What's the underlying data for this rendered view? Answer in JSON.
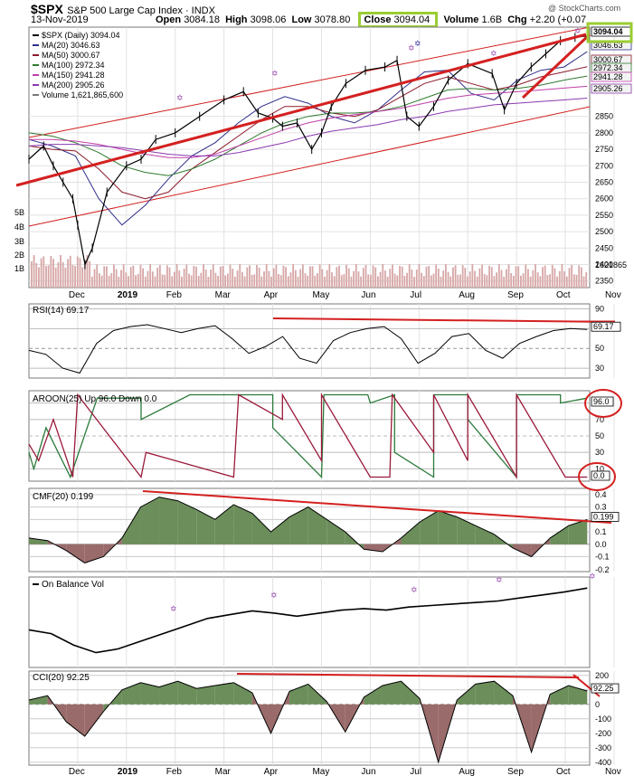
{
  "header": {
    "symbol": "$SPX",
    "name": "S&P 500 Large Cap Index",
    "exchange": "INDX",
    "date": "13-Nov-2019",
    "open_label": "Open",
    "open": "3084.18",
    "high_label": "High",
    "high": "3098.06",
    "low_label": "Low",
    "low": "3078.80",
    "close_label": "Close",
    "close": "3094.04",
    "volume_label": "Volume",
    "volume": "1.6B",
    "chg_label": "Chg",
    "chg": "+2.20 (+0.07",
    "watermark": "@ StockCharts.com"
  },
  "colors": {
    "price": "#000000",
    "ma20": "#2e2e8a",
    "ma50": "#8b1a2a",
    "ma100": "#2f7a2f",
    "ma150": "#c040a8",
    "ma200": "#8a3ab0",
    "trend": "#d42020",
    "highlight": "#9acd32",
    "volume": "#d7a7a7",
    "green_fill": "#6b8e5a",
    "red_fill": "#9a6b6b",
    "aroon_up": "#2a7a3a",
    "aroon_down": "#9a1a3a",
    "star": "#9a50b0"
  },
  "chart_data": [
    {
      "type": "line",
      "panel": "price",
      "legend": [
        "$SPX (Daily) 3094.04",
        "MA(20) 3046.63",
        "MA(50) 3000.67",
        "MA(100) 2972.34",
        "MA(150) 2941.28",
        "MA(200) 2905.26",
        "Volume 1,621,865,600"
      ],
      "x_tick_labels": [
        "Dec",
        "2019",
        "Feb",
        "Mar",
        "Apr",
        "May",
        "Jun",
        "Jul",
        "Aug",
        "Sep",
        "Oct",
        "Nov"
      ],
      "x_tick_months": [
        1,
        2,
        3,
        4,
        5,
        6,
        7,
        8,
        9,
        10,
        11,
        12
      ],
      "y_ticks": [
        2350,
        2400,
        2450,
        2500,
        2550,
        2600,
        2650,
        2700,
        2750,
        2800,
        2850
      ],
      "ylim": [
        2330,
        3110
      ],
      "volume_ticks": [
        "1B",
        "2B",
        "3B",
        "4B",
        "5B"
      ],
      "volume_last_label": "1621865",
      "right_labels": [
        "3094.04",
        "3046.63",
        "3000.67",
        "2972.34",
        "2941.28",
        "2905.26"
      ],
      "price": {
        "x": [
          0.0,
          0.3,
          0.5,
          0.7,
          0.9,
          1.0,
          1.15,
          1.3,
          1.6,
          2.0,
          2.3,
          2.6,
          3.0,
          3.5,
          4.0,
          4.4,
          4.7,
          5.0,
          5.2,
          5.5,
          5.8,
          6.0,
          6.2,
          6.5,
          6.9,
          7.3,
          7.55,
          7.75,
          8.0,
          8.3,
          8.6,
          9.0,
          9.5,
          9.75,
          10.0,
          10.3,
          10.6,
          10.9,
          11.2,
          11.45
        ],
        "values": [
          2720,
          2760,
          2700,
          2650,
          2600,
          2520,
          2400,
          2450,
          2620,
          2700,
          2720,
          2780,
          2800,
          2850,
          2900,
          2925,
          2860,
          2845,
          2820,
          2830,
          2750,
          2800,
          2880,
          2950,
          2990,
          3000,
          3020,
          2850,
          2820,
          2880,
          2960,
          3010,
          2980,
          2870,
          2950,
          3000,
          3040,
          3080,
          3090,
          3094.04
        ]
      },
      "moving_averages": [
        {
          "name": "MA(20)",
          "values": [
            2780,
            2760,
            2730,
            2600,
            2520,
            2580,
            2660,
            2730,
            2770,
            2830,
            2880,
            2910,
            2890,
            2850,
            2830,
            2870,
            2930,
            2985,
            2990,
            2920,
            2900,
            2960,
            2990,
            3000,
            3046.63
          ]
        },
        {
          "name": "MA(50)",
          "values": [
            2760,
            2750,
            2745,
            2690,
            2620,
            2600,
            2620,
            2690,
            2740,
            2790,
            2840,
            2880,
            2880,
            2860,
            2850,
            2870,
            2910,
            2950,
            2970,
            2950,
            2930,
            2945,
            2970,
            2985,
            3000.67
          ]
        },
        {
          "name": "MA(100)",
          "values": [
            2800,
            2790,
            2770,
            2740,
            2700,
            2680,
            2670,
            2690,
            2720,
            2760,
            2800,
            2830,
            2850,
            2860,
            2860,
            2865,
            2880,
            2905,
            2930,
            2935,
            2930,
            2935,
            2945,
            2960,
            2972.34
          ]
        },
        {
          "name": "MA(150)",
          "values": [
            2780,
            2780,
            2775,
            2765,
            2750,
            2735,
            2725,
            2725,
            2735,
            2760,
            2785,
            2810,
            2830,
            2845,
            2855,
            2865,
            2875,
            2890,
            2905,
            2915,
            2920,
            2925,
            2930,
            2936,
            2941.28
          ]
        },
        {
          "name": "MA(200)",
          "values": [
            2760,
            2765,
            2765,
            2760,
            2755,
            2745,
            2735,
            2730,
            2730,
            2740,
            2755,
            2770,
            2790,
            2805,
            2815,
            2825,
            2840,
            2850,
            2865,
            2875,
            2885,
            2890,
            2895,
            2900,
            2905.26
          ]
        }
      ]
    },
    {
      "type": "line",
      "panel": "rsi",
      "legend": "RSI(14) 69.17",
      "y_ticks": [
        30,
        50,
        70,
        90
      ],
      "y_tick_labels": [
        "30",
        "50",
        "70",
        "90"
      ],
      "value_label": "69.17",
      "ylim": [
        20,
        95
      ],
      "values": [
        48,
        44,
        30,
        25,
        55,
        68,
        72,
        74,
        70,
        66,
        70,
        73,
        60,
        45,
        52,
        62,
        40,
        35,
        58,
        66,
        70,
        72,
        60,
        35,
        45,
        62,
        65,
        48,
        40,
        55,
        62,
        68,
        70,
        69.17
      ]
    },
    {
      "type": "line",
      "panel": "aroon",
      "legend": "AROON(25) Up 96.0 Down 0.0",
      "y_ticks": [
        10,
        30,
        50,
        70,
        90
      ],
      "y_tick_labels": [
        "10",
        "30",
        "50",
        "70",
        "90"
      ],
      "value_labels": [
        "96.0",
        "0.0"
      ],
      "ylim": [
        -5,
        105
      ],
      "series": [
        {
          "name": "Up 96.0",
          "x": [
            0.0,
            0.1,
            0.35,
            0.35,
            0.6,
            0.85,
            1.4,
            1.4,
            2.3,
            2.3,
            3.3,
            3.3,
            4.6,
            4.6,
            5.0,
            5.0,
            6.0,
            6.05,
            6.95,
            7.0,
            7.5,
            7.5,
            8.3,
            8.3,
            9.0,
            9.0,
            10.0,
            10.0,
            10.9,
            10.9,
            11.45
          ],
          "values": [
            30,
            10,
            60,
            60,
            30,
            0,
            96,
            96,
            96,
            70,
            100,
            100,
            100,
            100,
            100,
            60,
            0,
            100,
            100,
            90,
            100,
            30,
            0,
            100,
            100,
            70,
            0,
            100,
            100,
            90,
            96
          ]
        },
        {
          "name": "Down 0.0",
          "x": [
            0.0,
            0.2,
            0.5,
            0.9,
            1.0,
            1.0,
            2.3,
            2.4,
            4.2,
            4.3,
            5.2,
            5.2,
            6.0,
            6.0,
            7.0,
            7.4,
            7.45,
            8.3,
            8.3,
            9.0,
            9.0,
            10.0,
            10.0,
            11.0,
            11.45
          ],
          "values": [
            40,
            20,
            70,
            0,
            100,
            100,
            0,
            30,
            0,
            100,
            70,
            100,
            20,
            100,
            0,
            0,
            100,
            30,
            100,
            20,
            100,
            0,
            100,
            0,
            0
          ]
        }
      ]
    },
    {
      "type": "area",
      "panel": "cmf",
      "legend": "CMF(20) 0.199",
      "y_ticks": [
        -0.1,
        0.0,
        0.1,
        0.2,
        0.3,
        0.4
      ],
      "y_tick_labels": [
        "-0.1",
        "0.0",
        "0.1",
        "0.2",
        "0.3",
        "0.4"
      ],
      "extra_tick_label": "-0.2",
      "value_label": "0.199",
      "ylim": [
        -0.22,
        0.45
      ],
      "values": [
        0.05,
        0.03,
        -0.05,
        -0.15,
        -0.1,
        0.05,
        0.3,
        0.38,
        0.35,
        0.28,
        0.2,
        0.32,
        0.25,
        0.1,
        0.22,
        0.3,
        0.2,
        0.1,
        -0.04,
        -0.06,
        0.05,
        0.18,
        0.27,
        0.22,
        0.15,
        0.08,
        -0.03,
        -0.1,
        0.05,
        0.15,
        0.199
      ]
    },
    {
      "type": "line",
      "panel": "obv",
      "legend": "On Balance Vol",
      "values": [
        0.4,
        0.35,
        0.2,
        0.1,
        0.15,
        0.25,
        0.35,
        0.45,
        0.55,
        0.6,
        0.65,
        0.62,
        0.58,
        0.62,
        0.66,
        0.68,
        0.66,
        0.7,
        0.72,
        0.74,
        0.76,
        0.78,
        0.82,
        0.86,
        0.9,
        0.95
      ]
    },
    {
      "type": "area",
      "panel": "cci",
      "legend": "CCI(20) 92.25",
      "y_ticks": [
        -400,
        -300,
        -200,
        -100,
        0,
        100,
        200
      ],
      "y_tick_labels": [
        "-400",
        "-300",
        "-200",
        "-100",
        "0",
        "100",
        "200"
      ],
      "value_label": "92.25",
      "ylim": [
        -420,
        230
      ],
      "values": [
        30,
        60,
        -120,
        -220,
        -50,
        100,
        150,
        120,
        160,
        110,
        130,
        150,
        80,
        -200,
        90,
        140,
        20,
        -190,
        50,
        130,
        160,
        40,
        -400,
        30,
        140,
        160,
        60,
        -330,
        70,
        130,
        92.25
      ]
    }
  ]
}
